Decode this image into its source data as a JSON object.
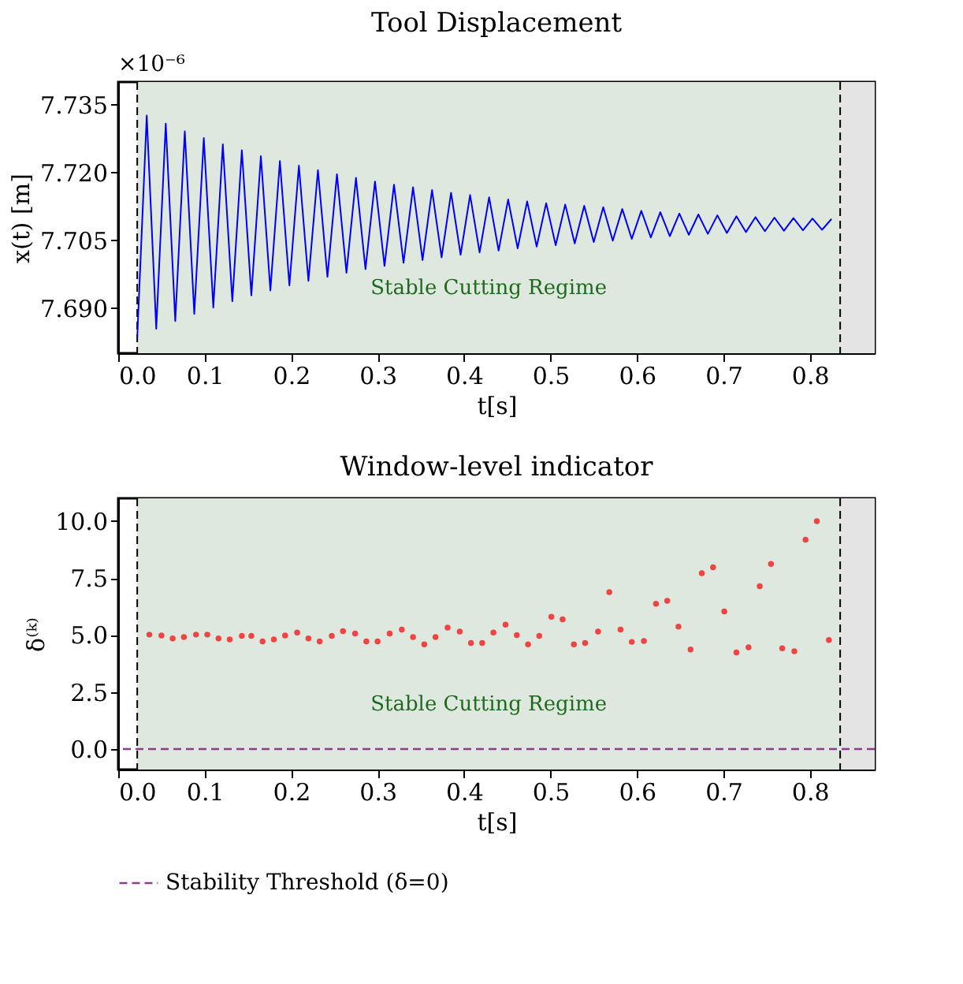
{
  "chart_data": [
    {
      "type": "line",
      "title": "Tool Displacement",
      "xlabel": "t[s]",
      "ylabel": "x(t) [m]",
      "annotations": [
        "×10⁻⁶"
      ],
      "x": [
        0.022,
        0.033,
        0.044,
        0.055,
        0.066,
        0.077,
        0.088,
        0.099,
        0.11,
        0.121,
        0.132,
        0.143,
        0.154,
        0.165,
        0.176,
        0.187,
        0.198,
        0.209,
        0.22,
        0.231,
        0.242,
        0.253,
        0.264,
        0.275,
        0.286,
        0.297,
        0.308,
        0.319,
        0.33,
        0.341,
        0.352,
        0.363,
        0.374,
        0.385,
        0.396,
        0.407,
        0.418,
        0.429,
        0.44,
        0.451,
        0.462,
        0.473,
        0.484,
        0.495,
        0.506,
        0.517,
        0.528,
        0.539,
        0.55,
        0.561,
        0.572,
        0.583,
        0.594,
        0.605,
        0.616,
        0.627,
        0.638,
        0.649,
        0.66,
        0.671,
        0.682,
        0.693,
        0.704,
        0.715,
        0.726,
        0.737,
        0.748,
        0.759,
        0.77,
        0.781,
        0.792,
        0.803,
        0.814,
        0.825
      ],
      "series": [
        {
          "color": "#0000ff",
          "values": [
            7.6835,
            7.7326,
            7.6854,
            7.7308,
            7.6871,
            7.7291,
            7.6887,
            7.7276,
            7.6901,
            7.7262,
            7.6915,
            7.7249,
            7.6928,
            7.7236,
            7.6939,
            7.7225,
            7.695,
            7.7215,
            7.696,
            7.7205,
            7.6969,
            7.7196,
            7.6978,
            7.7188,
            7.6986,
            7.718,
            7.6993,
            7.7173,
            7.7,
            7.7167,
            7.7006,
            7.7161,
            7.7012,
            7.7155,
            7.7018,
            7.715,
            7.7023,
            7.7145,
            7.7027,
            7.714,
            7.7032,
            7.7136,
            7.7036,
            7.7132,
            7.7039,
            7.7129,
            7.7043,
            7.7126,
            7.7046,
            7.7123,
            7.7049,
            7.7119,
            7.7053,
            7.7115,
            7.7056,
            7.7112,
            7.7059,
            7.7109,
            7.7062,
            7.7107,
            7.7064,
            7.7105,
            7.7066,
            7.7103,
            7.7068,
            7.7101,
            7.707,
            7.71,
            7.7071,
            7.7099,
            7.7072,
            7.7098,
            7.7073,
            7.7097
          ]
        }
      ],
      "xlim": [
        0,
        0.875
      ],
      "xticks": [
        {
          "value": 0,
          "label": "0.0"
        },
        0.1,
        0.2,
        0.3,
        0.4,
        0.5,
        0.6,
        0.7,
        0.8
      ],
      "ylim": [
        7.68,
        7.74
      ],
      "yticks": [
        {
          "value": 7.69,
          "label": "7.690"
        },
        7.705,
        {
          "value": 7.72,
          "label": "7.720"
        },
        7.735
      ],
      "bands": [
        {
          "axis": "x",
          "from": 0.022,
          "to": 0.835,
          "label": "Stable Cutting Regime",
          "color": "#dfe8df"
        },
        {
          "axis": "x",
          "from": 0.835,
          "to": 0.875,
          "color": "#e4e4e4"
        }
      ],
      "ref_lines": [
        {
          "axis": "x",
          "value": 0.022,
          "color": "#000000",
          "line_style": "dashed"
        },
        {
          "axis": "x",
          "value": 0.835,
          "color": "#000000",
          "line_style": "dashed"
        }
      ],
      "grid": false,
      "line_style": "solid",
      "marker": "none"
    },
    {
      "type": "scatter",
      "title": "Window-level indicator",
      "xlabel": "t[s]",
      "ylabel": "δ⁽ᵏ⁾",
      "x": [
        0.036,
        0.05,
        0.063,
        0.076,
        0.09,
        0.103,
        0.116,
        0.129,
        0.143,
        0.154,
        0.167,
        0.18,
        0.193,
        0.207,
        0.22,
        0.233,
        0.247,
        0.26,
        0.274,
        0.287,
        0.3,
        0.314,
        0.328,
        0.341,
        0.354,
        0.367,
        0.381,
        0.395,
        0.408,
        0.421,
        0.434,
        0.448,
        0.461,
        0.474,
        0.487,
        0.501,
        0.514,
        0.527,
        0.54,
        0.555,
        0.568,
        0.581,
        0.594,
        0.608,
        0.622,
        0.635,
        0.648,
        0.662,
        0.675,
        0.688,
        0.701,
        0.715,
        0.729,
        0.742,
        0.755,
        0.768,
        0.782,
        0.795,
        0.808,
        0.822
      ],
      "series": [
        {
          "color": "#ef4444",
          "values": [
            5.02,
            4.98,
            4.85,
            4.91,
            5.02,
            5.02,
            4.85,
            4.81,
            4.96,
            4.96,
            4.72,
            4.81,
            4.98,
            5.11,
            4.85,
            4.72,
            4.96,
            5.17,
            5.07,
            4.72,
            4.72,
            5.07,
            5.24,
            4.91,
            4.59,
            4.91,
            5.33,
            5.15,
            4.65,
            4.65,
            5.11,
            5.46,
            5.0,
            4.59,
            4.96,
            5.8,
            5.69,
            4.59,
            4.65,
            5.15,
            6.88,
            5.24,
            4.7,
            4.74,
            6.37,
            6.5,
            5.37,
            4.37,
            7.71,
            7.97,
            6.04,
            4.24,
            4.46,
            7.14,
            8.12,
            4.42,
            4.29,
            9.18,
            10.0,
            4.78
          ]
        }
      ],
      "xlim": [
        0,
        0.875
      ],
      "xticks": [
        {
          "value": 0,
          "label": "0.0"
        },
        0.1,
        0.2,
        0.3,
        0.4,
        0.5,
        0.6,
        0.7,
        0.8
      ],
      "ylim": [
        -0.9,
        11.0
      ],
      "yticks": [
        {
          "value": 0,
          "label": "0.0"
        },
        2.5,
        {
          "value": 5,
          "label": "5.0"
        },
        7.5,
        {
          "value": 10,
          "label": "10.0"
        }
      ],
      "bands": [
        {
          "axis": "x",
          "from": 0.022,
          "to": 0.835,
          "label": "Stable Cutting Regime",
          "color": "#dfe8df"
        },
        {
          "axis": "x",
          "from": 0.835,
          "to": 0.875,
          "color": "#e4e4e4"
        }
      ],
      "ref_lines": [
        {
          "axis": "x",
          "value": 0.022,
          "color": "#000000",
          "line_style": "dashed"
        },
        {
          "axis": "x",
          "value": 0.835,
          "color": "#000000",
          "line_style": "dashed"
        },
        {
          "axis": "y",
          "value": 0,
          "label": "Stability Threshold (δ=0)",
          "color": "#8e3b8e",
          "line_style": "dashed"
        }
      ],
      "grid": false,
      "legend": "bottom",
      "marker": "circle"
    }
  ]
}
